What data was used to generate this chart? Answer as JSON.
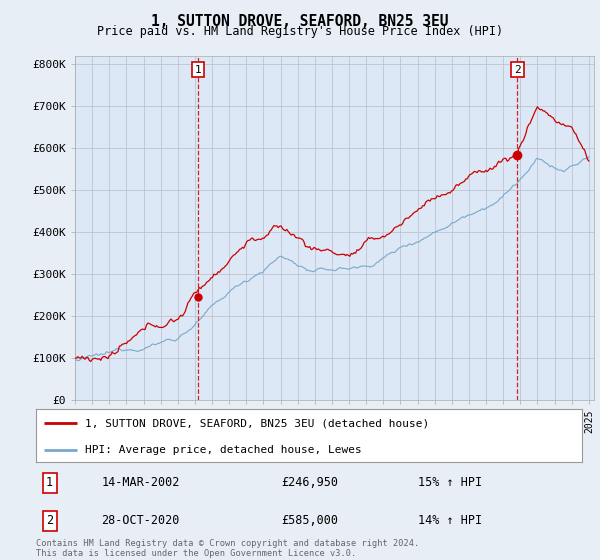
{
  "title": "1, SUTTON DROVE, SEAFORD, BN25 3EU",
  "subtitle": "Price paid vs. HM Land Registry's House Price Index (HPI)",
  "legend_line1": "1, SUTTON DROVE, SEAFORD, BN25 3EU (detached house)",
  "legend_line2": "HPI: Average price, detached house, Lewes",
  "transaction1_date": "14-MAR-2002",
  "transaction1_price": "£246,950",
  "transaction1_hpi": "15% ↑ HPI",
  "transaction1_year": 2002.2,
  "transaction1_value": 246950,
  "transaction2_date": "28-OCT-2020",
  "transaction2_price": "£585,000",
  "transaction2_hpi": "14% ↑ HPI",
  "transaction2_year": 2020.83,
  "transaction2_value": 585000,
  "ylabel_ticks": [
    "£0",
    "£100K",
    "£200K",
    "£300K",
    "£400K",
    "£500K",
    "£600K",
    "£700K",
    "£800K"
  ],
  "ytick_values": [
    0,
    100000,
    200000,
    300000,
    400000,
    500000,
    600000,
    700000,
    800000
  ],
  "ymax": 820000,
  "red_color": "#cc0000",
  "blue_color": "#7aa8cc",
  "plot_bg_color": "#dce8f5",
  "background_color": "#e8eef5",
  "footnote": "Contains HM Land Registry data © Crown copyright and database right 2024.\nThis data is licensed under the Open Government Licence v3.0."
}
